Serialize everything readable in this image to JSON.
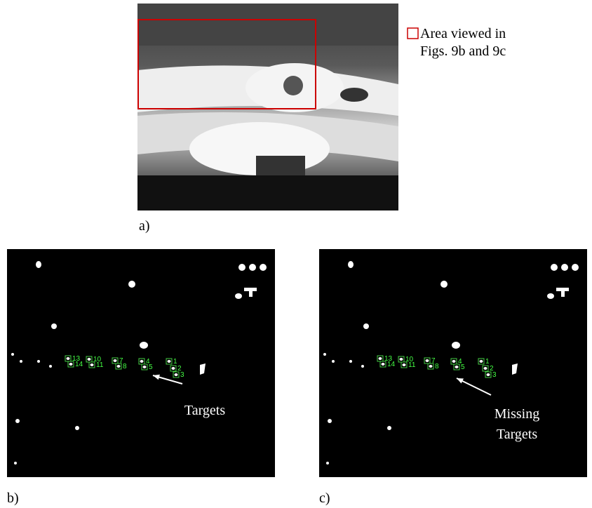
{
  "panel_a": {
    "label": "a)",
    "legend": [
      "Area viewed in",
      "Figs. 9b and 9c"
    ]
  },
  "panel_b": {
    "label": "b)",
    "annotation": [
      "Targets"
    ],
    "targets": [
      "13",
      "14",
      "10",
      "11",
      "7",
      "8",
      "4",
      "5",
      "1",
      "2",
      "3"
    ]
  },
  "panel_c": {
    "label": "c)",
    "annotation": [
      "Missing",
      "Targets"
    ],
    "targets": [
      "13",
      "14",
      "10",
      "11",
      "7",
      "8",
      "4",
      "5",
      "1",
      "2",
      "3"
    ]
  }
}
